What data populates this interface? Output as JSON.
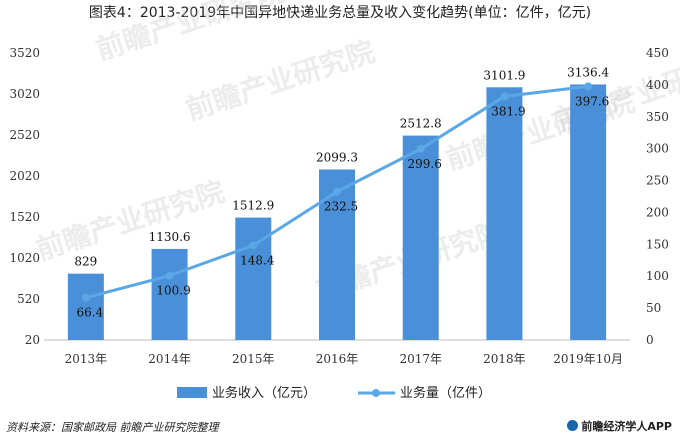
{
  "chart_data": {
    "type": "bar",
    "title": "图表4：2013-2019年中国异地快递业务总量及收入变化趋势(单位：亿件，亿元)",
    "categories": [
      "2013年",
      "2014年",
      "2015年",
      "2016年",
      "2017年",
      "2018年",
      "2019年10月"
    ],
    "series": [
      {
        "name": "业务收入（亿元）",
        "type": "bar",
        "axis": "left",
        "values": [
          829,
          1130.6,
          1512.9,
          2099.3,
          2512.8,
          3101.9,
          3136.4
        ],
        "labels": [
          "829",
          "1130.6",
          "1512.9",
          "2099.3",
          "2512.8",
          "3101.9",
          "3136.4"
        ]
      },
      {
        "name": "业务量（亿件）",
        "type": "line",
        "axis": "right",
        "values": [
          66.4,
          100.9,
          148.4,
          232.5,
          299.6,
          381.9,
          397.6
        ],
        "labels": [
          "66.4",
          "100.9",
          "148.4",
          "232.5",
          "299.6",
          "381.9",
          "397.6"
        ]
      }
    ],
    "y_left": {
      "min": 20,
      "max": 3520,
      "ticks": [
        "20",
        "520",
        "1020",
        "1520",
        "2020",
        "2520",
        "3020",
        "3520"
      ]
    },
    "y_right": {
      "min": 0,
      "max": 450,
      "ticks": [
        "0",
        "50",
        "100",
        "150",
        "200",
        "250",
        "300",
        "350",
        "400",
        "450"
      ]
    },
    "grid": false,
    "legend_position": "bottom",
    "colors": {
      "bar": "#4a90d9",
      "line": "#5aa7e6"
    }
  },
  "watermark_text": "前瞻产业研究院",
  "footer": {
    "source": "资料来源：国家邮政局 前瞻产业研究院整理",
    "brand": "前瞻经济学人APP"
  }
}
